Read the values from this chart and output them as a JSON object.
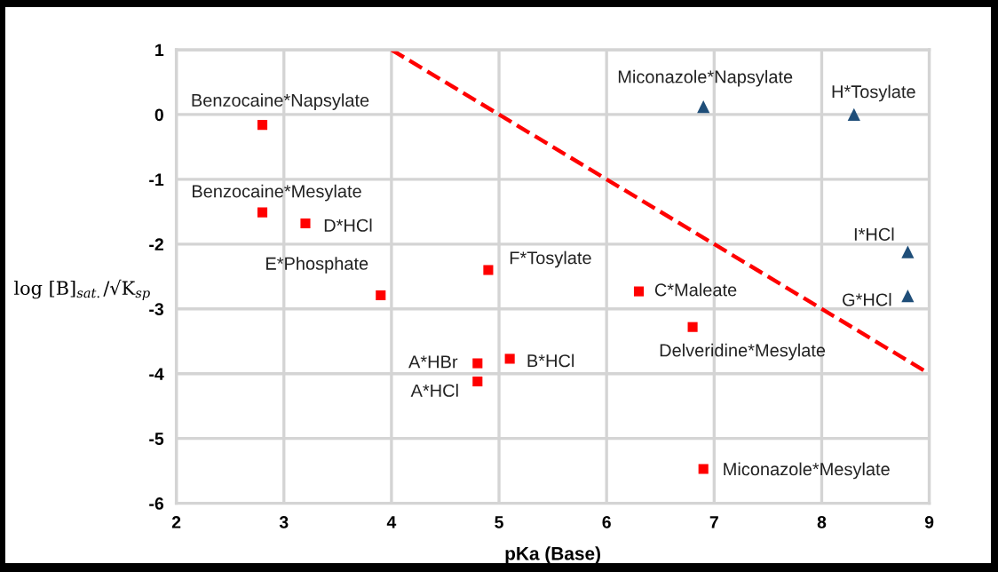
{
  "chart_data": {
    "type": "scatter",
    "xlabel": "pKa (Base)",
    "ylabel": "log [B]$_{sat.}$/√K$_{sp}$",
    "xlim": [
      2,
      9
    ],
    "xticks": [
      2,
      3,
      4,
      5,
      6,
      7,
      8,
      9
    ],
    "ylim": [
      -6,
      1
    ],
    "yticks": [
      -6,
      -5,
      -4,
      -3,
      -2,
      -1,
      0,
      1
    ],
    "grid": true,
    "series": [
      {
        "marker": "square",
        "color": "#ff0000",
        "x": [
          2.8,
          2.8,
          3.2,
          3.9,
          4.9,
          4.8,
          4.8,
          5.1,
          6.3,
          6.8,
          6.9
        ],
        "values": [
          -0.16,
          -1.51,
          -1.68,
          -2.79,
          -2.4,
          -3.84,
          -4.12,
          -3.77,
          -2.73,
          -3.28,
          -5.47
        ]
      },
      {
        "marker": "triangle",
        "color": "#1f4e79",
        "x": [
          6.9,
          8.3,
          8.8,
          8.8
        ],
        "values": [
          0.12,
          0.0,
          -2.12,
          -2.8
        ]
      },
      {
        "type": "line",
        "marker": "none",
        "line_style": "dashed",
        "color": "#ff0000",
        "x": [
          4,
          9
        ],
        "values": [
          1,
          -4
        ]
      }
    ],
    "annotations": [
      {
        "text": "Benzocaine*Napsylate",
        "x": 2.8,
        "y": -0.16
      },
      {
        "text": "Benzocaine*Mesylate",
        "x": 2.8,
        "y": -1.51
      },
      {
        "text": "D*HCl",
        "x": 3.2,
        "y": -1.68
      },
      {
        "text": "E*Phosphate",
        "x": 3.9,
        "y": -2.79
      },
      {
        "text": "F*Tosylate",
        "x": 4.9,
        "y": -2.4
      },
      {
        "text": "A*HBr",
        "x": 4.8,
        "y": -3.84
      },
      {
        "text": "A*HCl",
        "x": 4.8,
        "y": -4.12
      },
      {
        "text": "B*HCl",
        "x": 5.1,
        "y": -3.77
      },
      {
        "text": "C*Maleate",
        "x": 6.3,
        "y": -2.73
      },
      {
        "text": "Delveridine*Mesylate",
        "x": 6.8,
        "y": -3.28
      },
      {
        "text": "Miconazole*Mesylate",
        "x": 6.9,
        "y": -5.47
      },
      {
        "text": "Miconazole*Napsylate",
        "x": 6.9,
        "y": 0.12
      },
      {
        "text": "H*Tosylate",
        "x": 8.3,
        "y": 0.0
      },
      {
        "text": "I*HCl",
        "x": 8.8,
        "y": -2.12
      },
      {
        "text": "G*HCl",
        "x": 8.8,
        "y": -2.8
      }
    ]
  }
}
